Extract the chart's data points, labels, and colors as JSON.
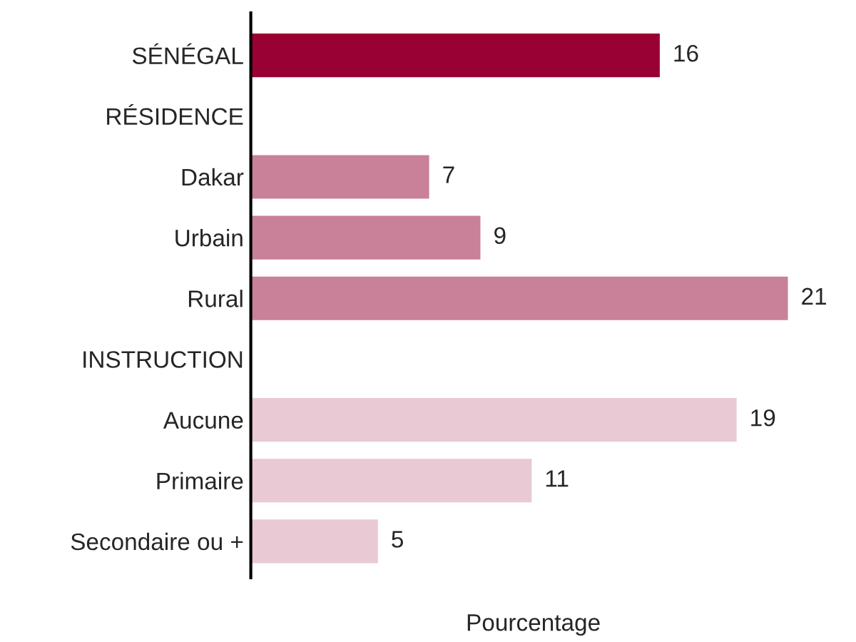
{
  "chart_data": {
    "type": "bar",
    "orientation": "horizontal",
    "xlabel": "Pourcentage",
    "categories": [
      "SÉNÉGAL",
      "RÉSIDENCE",
      "Dakar",
      "Urbain",
      "Rural",
      "INSTRUCTION",
      "Aucune",
      "Primaire",
      "Secondaire ou +"
    ],
    "values": [
      16,
      null,
      7,
      9,
      21,
      null,
      19,
      11,
      5
    ],
    "colors": [
      "#990033",
      null,
      "#c98099",
      "#c98099",
      "#c98099",
      null,
      "#e9c9d4",
      "#e9c9d4",
      "#e9c9d4"
    ],
    "data_labels": true,
    "grid": false,
    "legend": false,
    "tick_labels": "y"
  }
}
